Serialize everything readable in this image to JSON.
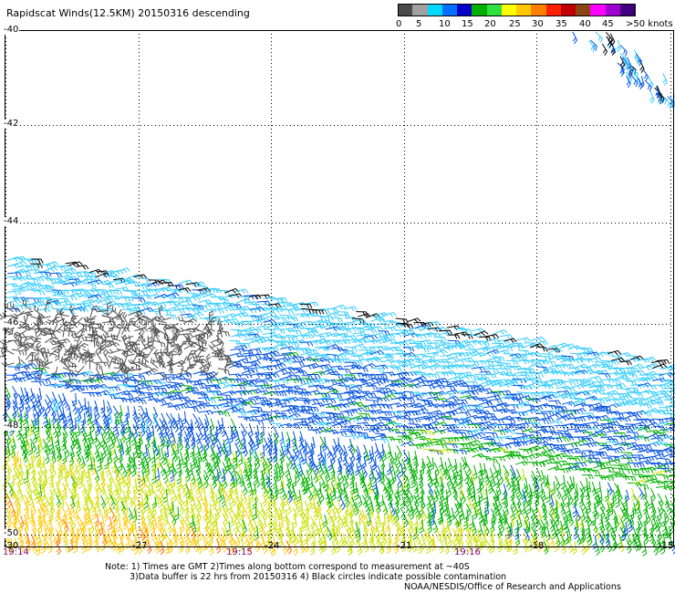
{
  "title": "Rapidscat Winds(12.5KM) 20150316 descending",
  "legend": {
    "ticks": [
      "0",
      "5",
      "10",
      "15",
      "20",
      "25",
      "30",
      "35",
      "40",
      "45",
      ">50 knots"
    ],
    "colors": [
      "#4a4a4a",
      "#a0a0a0",
      "#00d8ff",
      "#0070ff",
      "#0000c8",
      "#00b000",
      "#30e040",
      "#ffff00",
      "#ffc800",
      "#ff8000",
      "#ff2000",
      "#c00000",
      "#8b4513",
      "#ff00ff",
      "#a000d0",
      "#400080"
    ]
  },
  "map": {
    "lat_labels": [
      "-40",
      "-42",
      "-44",
      "-46",
      "-48",
      "-50"
    ],
    "lon_labels": [
      "-30",
      "-27",
      "-24",
      "-21",
      "-18",
      "-15"
    ],
    "time_labels": [
      "19:14",
      "19:15",
      "19:16"
    ],
    "lat_range": [
      -50,
      -40
    ],
    "lon_range": [
      -30,
      -15
    ]
  },
  "notes": {
    "line1": "Note: 1) Times are GMT 2)Times along bottom correspond to measurement at ~40S",
    "line2": "3)Data buffer is 22 hrs from 20150316 4) Black circles indicate possible contamination",
    "credit": "NOAA/NESDIS/Office of Research and Applications"
  },
  "wind_colors": {
    "rain_flag": "#000000",
    "speed_0_5": "#505050",
    "speed_5_10": "#33ccff",
    "speed_10_15": "#0050e0",
    "speed_15_20": "#00b000",
    "speed_20_25": "#c8e000",
    "speed_25_30": "#ffc800",
    "speed_30_35": "#ff7000",
    "speed_35_40": "#e02000"
  }
}
